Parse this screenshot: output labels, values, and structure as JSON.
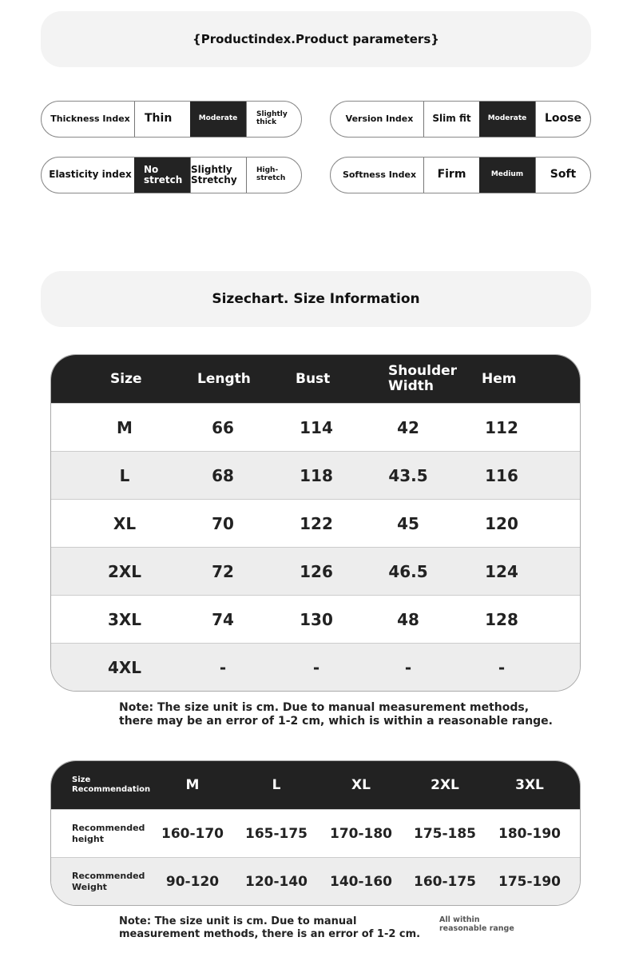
{
  "product_params": {
    "title": "{Productindex.Product parameters}",
    "indexes": [
      {
        "label": "Thickness Index",
        "options": [
          "Thin",
          "Moderate",
          "Slightly thick"
        ],
        "selected": "Moderate"
      },
      {
        "label": "Version Index",
        "options": [
          "Slim fit",
          "Moderate",
          "Loose"
        ],
        "selected": "Moderate"
      },
      {
        "label": "Elasticity index",
        "options": [
          "No stretch",
          "Slightly Stretchy",
          "High-stretch"
        ],
        "selected": "No stretch"
      },
      {
        "label": "Softness Index",
        "options": [
          "Firm",
          "Medium",
          "Soft"
        ],
        "selected": "Medium"
      }
    ]
  },
  "size_chart": {
    "title": "Sizechart. Size Information",
    "headers": [
      "Size",
      "Length",
      "Bust",
      "Shoulder Width",
      "Hem"
    ],
    "rows": [
      [
        "M",
        "66",
        "114",
        "42",
        "112"
      ],
      [
        "L",
        "68",
        "118",
        "43.5",
        "116"
      ],
      [
        "XL",
        "70",
        "122",
        "45",
        "120"
      ],
      [
        "2XL",
        "72",
        "126",
        "46.5",
        "124"
      ],
      [
        "3XL",
        "74",
        "130",
        "48",
        "128"
      ],
      [
        "4XL",
        "-",
        "-",
        "-",
        "-"
      ]
    ],
    "note": "Note: The size unit is cm. Due to manual measurement methods, there may be an error of 1-2 cm, which is within a reasonable range."
  },
  "recommendation": {
    "headers": [
      "Size Recommendation",
      "M",
      "L",
      "XL",
      "2XL",
      "3XL"
    ],
    "rows": [
      [
        "Recommended height",
        "160-170",
        "165-175",
        "170-180",
        "175-185",
        "180-190"
      ],
      [
        "Recommended Weight",
        "90-120",
        "120-140",
        "140-160",
        "160-175",
        "175-190"
      ]
    ],
    "note": "Note: The size unit is cm. Due to manual measurement methods, there is an error of 1-2 cm.",
    "side_note": "All within reasonable range"
  },
  "colors": {
    "dark": "#232323",
    "banner": "#f3f3f3",
    "alt_row": "#ededed"
  }
}
